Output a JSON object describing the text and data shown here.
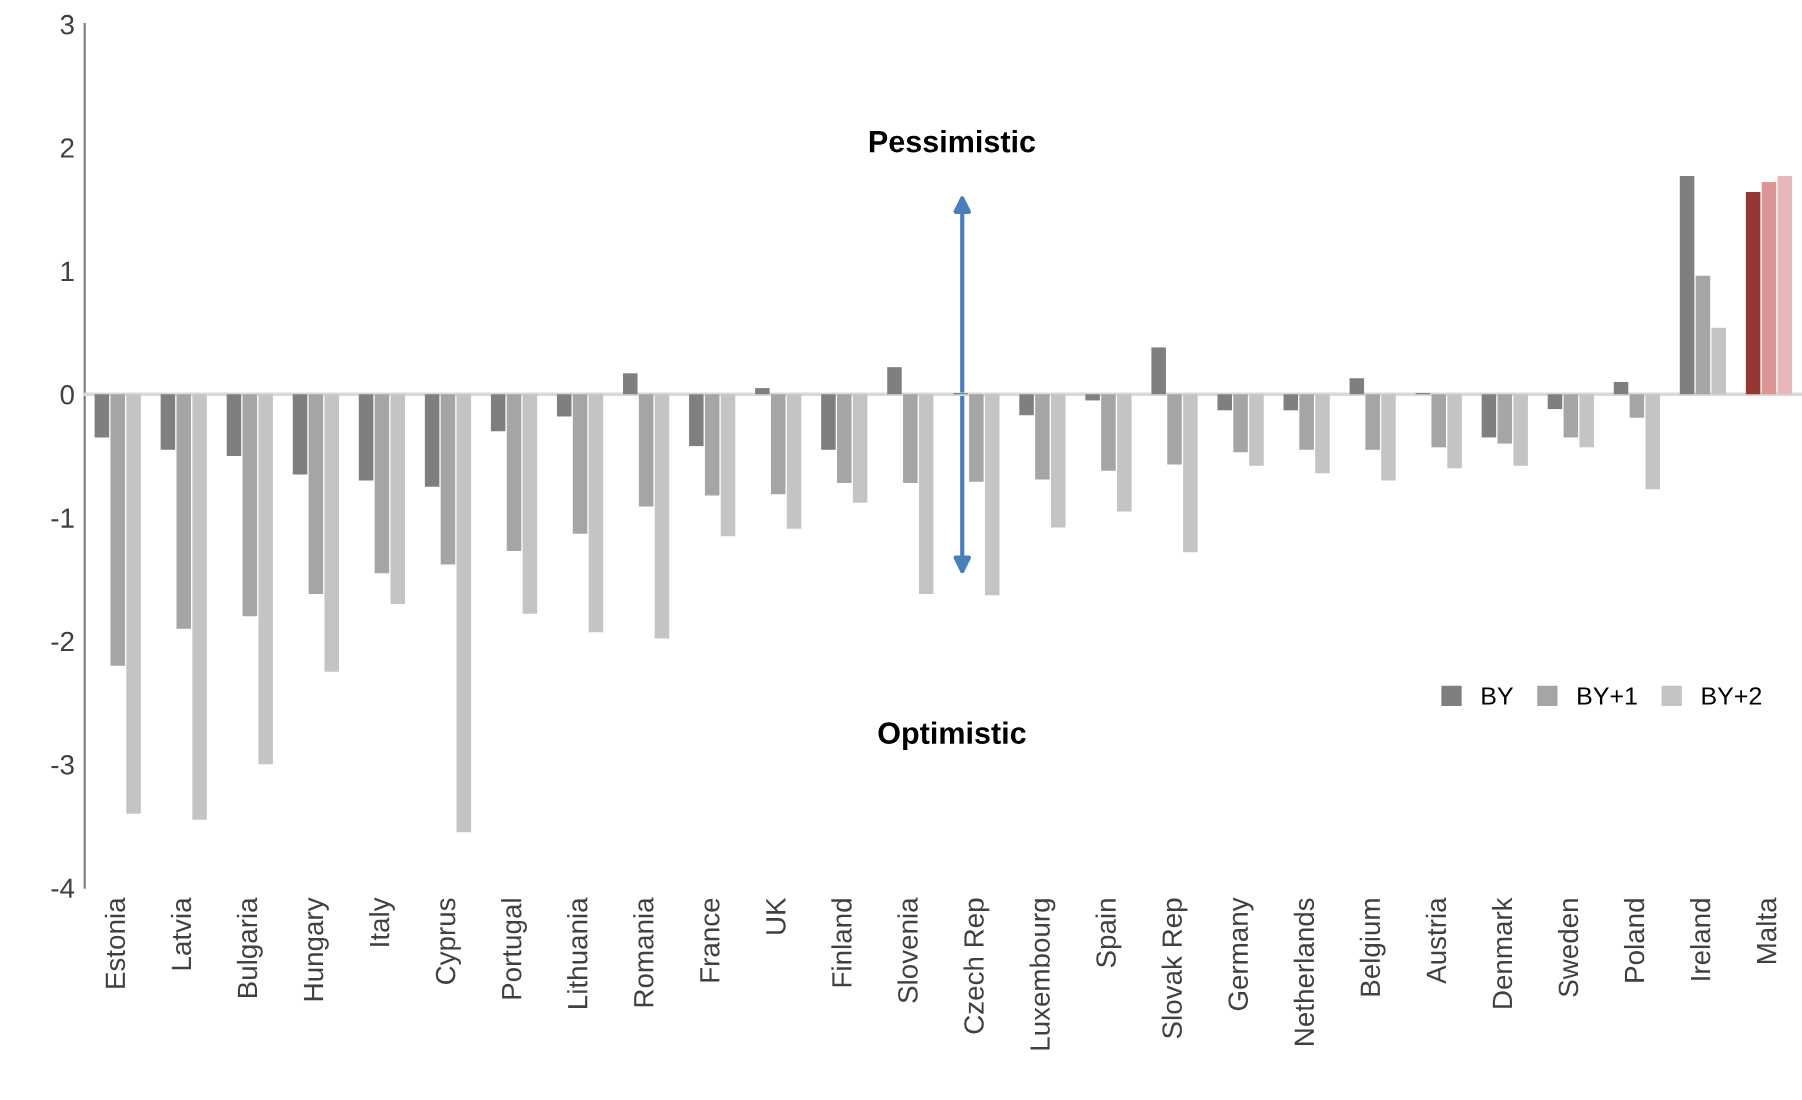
{
  "chart_data": {
    "type": "bar",
    "categories": [
      "Estonia",
      "Latvia",
      "Bulgaria",
      "Hungary",
      "Italy",
      "Cyprus",
      "Portugal",
      "Lithuania",
      "Romania",
      "France",
      "UK",
      "Finland",
      "Slovenia",
      "Czech Rep",
      "Luxembourg",
      "Spain",
      "Slovak Rep",
      "Germany",
      "Netherlands",
      "Belgium",
      "Austria",
      "Denmark",
      "Sweden",
      "Poland",
      "Ireland",
      "Malta"
    ],
    "series": [
      {
        "name": "BY",
        "color": "#7f7f7f",
        "colors": [
          "#7f7f7f",
          "#7f7f7f",
          "#7f7f7f",
          "#7f7f7f",
          "#7f7f7f",
          "#7f7f7f",
          "#7f7f7f",
          "#7f7f7f",
          "#7f7f7f",
          "#7f7f7f",
          "#7f7f7f",
          "#7f7f7f",
          "#7f7f7f",
          "#7f7f7f",
          "#7f7f7f",
          "#7f7f7f",
          "#7f7f7f",
          "#7f7f7f",
          "#7f7f7f",
          "#7f7f7f",
          "#7f7f7f",
          "#7f7f7f",
          "#7f7f7f",
          "#7f7f7f",
          "#7f7f7f",
          "#953735"
        ],
        "values": [
          -0.35,
          -0.45,
          -0.5,
          -0.65,
          -0.7,
          -0.75,
          -0.3,
          -0.18,
          0.17,
          -0.42,
          0.05,
          -0.45,
          0.22,
          0.01,
          -0.17,
          -0.05,
          0.38,
          -0.13,
          -0.13,
          0.13,
          0.01,
          -0.35,
          -0.12,
          0.1,
          1.77,
          1.64
        ]
      },
      {
        "name": "BY+1",
        "color": "#a5a5a5",
        "colors": [
          "#a5a5a5",
          "#a5a5a5",
          "#a5a5a5",
          "#a5a5a5",
          "#a5a5a5",
          "#a5a5a5",
          "#a5a5a5",
          "#a5a5a5",
          "#a5a5a5",
          "#a5a5a5",
          "#a5a5a5",
          "#a5a5a5",
          "#a5a5a5",
          "#a5a5a5",
          "#a5a5a5",
          "#a5a5a5",
          "#a5a5a5",
          "#a5a5a5",
          "#a5a5a5",
          "#a5a5a5",
          "#a5a5a5",
          "#a5a5a5",
          "#a5a5a5",
          "#a5a5a5",
          "#a5a5a5",
          "#d99694"
        ],
        "values": [
          -2.2,
          -1.9,
          -1.8,
          -1.62,
          -1.45,
          -1.38,
          -1.27,
          -1.13,
          -0.91,
          -0.82,
          -0.81,
          -0.72,
          -0.72,
          -0.71,
          -0.69,
          -0.62,
          -0.57,
          -0.47,
          -0.45,
          -0.45,
          -0.43,
          -0.4,
          -0.35,
          -0.19,
          0.96,
          1.72
        ]
      },
      {
        "name": "BY+2",
        "color": "#c4c4c4",
        "colors": [
          "#c4c4c4",
          "#c4c4c4",
          "#c4c4c4",
          "#c4c4c4",
          "#c4c4c4",
          "#c4c4c4",
          "#c4c4c4",
          "#c4c4c4",
          "#c4c4c4",
          "#c4c4c4",
          "#c4c4c4",
          "#c4c4c4",
          "#c4c4c4",
          "#c4c4c4",
          "#c4c4c4",
          "#c4c4c4",
          "#c4c4c4",
          "#c4c4c4",
          "#c4c4c4",
          "#c4c4c4",
          "#c4c4c4",
          "#c4c4c4",
          "#c4c4c4",
          "#c4c4c4",
          "#c4c4c4",
          "#e6b9b8"
        ],
        "values": [
          -3.4,
          -3.45,
          -3.0,
          -2.25,
          -1.7,
          -3.55,
          -1.78,
          -1.93,
          -1.98,
          -1.15,
          -1.09,
          -0.88,
          -1.62,
          -1.63,
          -1.08,
          -0.95,
          -1.28,
          -0.58,
          -0.64,
          -0.7,
          -0.6,
          -0.58,
          -0.43,
          -0.77,
          0.54,
          1.77
        ]
      }
    ],
    "ylim": [
      -4,
      3
    ],
    "yticks": [
      -4,
      -3,
      -2,
      -1,
      0,
      1,
      2,
      3
    ],
    "annotations": [
      "Pessimistic",
      "Optimistic"
    ],
    "legend": "bottom right"
  }
}
